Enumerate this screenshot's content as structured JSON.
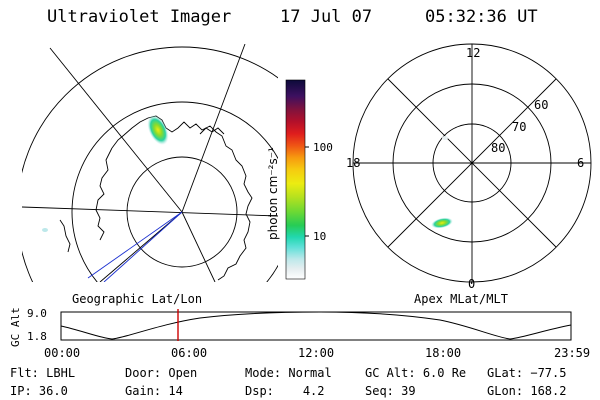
{
  "header": {
    "title": "Ultraviolet Imager",
    "date": "17 Jul 07",
    "time": "05:32:36 UT"
  },
  "colorbar": {
    "unit_label": "photon cm⁻²s⁻¹",
    "tick_labels": [
      "100",
      "10"
    ]
  },
  "polar_plot": {
    "mlt_labels": {
      "top": "12",
      "left": "18",
      "right": "6",
      "bottom": "0"
    },
    "lat_labels": [
      "60",
      "70",
      "80"
    ]
  },
  "map_caption": "Geographic Lat/Lon",
  "polar_caption": "Apex MLat/MLT",
  "timeline": {
    "axis_label": "GC Alt",
    "y_max": "9.0",
    "y_min": "1.8",
    "time_ticks": [
      "00:00",
      "06:00",
      "12:00",
      "18:00",
      "23:59"
    ],
    "current_time_marker": "05:32"
  },
  "info": {
    "flt_label": "Flt:",
    "flt_value": "LBHL",
    "door_label": "Door:",
    "door_value": "Open",
    "mode_label": "Mode:",
    "mode_value": "Normal",
    "gcalt_label": "GC Alt:",
    "gcalt_value": "6.0 Re",
    "glat_label": "GLat:",
    "glat_value": "−77.5",
    "ip_label": "IP:",
    "ip_value": "36.0",
    "gain_label": "Gain:",
    "gain_value": "14",
    "dsp_label": "Dsp:",
    "dsp_value": "4.2",
    "seq_label": "Seq:",
    "seq_value": "39",
    "glon_label": "GLon:",
    "glon_value": "168.2"
  },
  "colors": {
    "background": "#ffffff",
    "lines": "#000000",
    "marker": "#cc0000",
    "projection_line": "#1a2fd0"
  }
}
